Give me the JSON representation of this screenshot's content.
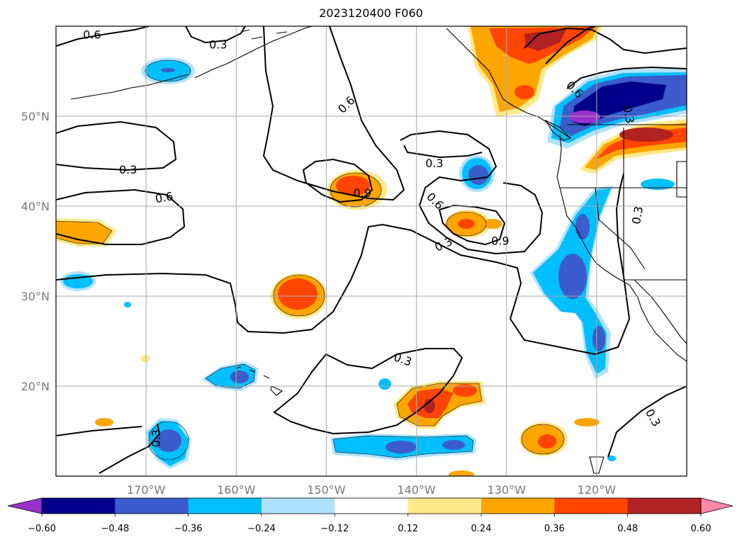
{
  "title": "2023120400 F060",
  "map": {
    "projection": "latlon",
    "extent": {
      "lon_min": -180,
      "lon_max": -110,
      "lat_min": 10,
      "lat_max": 60
    },
    "lon_ticks": [
      {
        "value": -170,
        "label": "170°W"
      },
      {
        "value": -160,
        "label": "160°W"
      },
      {
        "value": -150,
        "label": "150°W"
      },
      {
        "value": -140,
        "label": "140°W"
      },
      {
        "value": -130,
        "label": "130°W"
      },
      {
        "value": -120,
        "label": "120°W"
      }
    ],
    "lat_ticks": [
      {
        "value": 50,
        "label": "50°N"
      },
      {
        "value": 40,
        "label": "40°N"
      },
      {
        "value": 30,
        "label": "30°N"
      },
      {
        "value": 20,
        "label": "20°N"
      }
    ],
    "gridlines": true
  },
  "colorbar": {
    "orientation": "horizontal",
    "extend": "both",
    "levels": [
      -0.6,
      -0.48,
      -0.36,
      -0.24,
      -0.12,
      0.12,
      0.24,
      0.36,
      0.48,
      0.6
    ],
    "tick_labels": [
      "−0.60",
      "−0.48",
      "−0.36",
      "−0.24",
      "−0.12",
      "0.12",
      "0.24",
      "0.36",
      "0.48",
      "0.60"
    ],
    "colors": [
      "#9932cc",
      "#00008b",
      "#3a5ccc",
      "#00bfff",
      "#b0e2ff",
      "#ffffff",
      "#ffe98a",
      "#ffa500",
      "#ff4500",
      "#b22222",
      "#ff88aa"
    ]
  },
  "contour_labels": [
    {
      "text": "0.6",
      "lon": -176.0,
      "lat": 59.1,
      "rot": 0
    },
    {
      "text": "0.3",
      "lon": -162.0,
      "lat": 58.0,
      "rot": 0
    },
    {
      "text": "0.3",
      "lon": -172.0,
      "lat": 44.1,
      "rot": 0
    },
    {
      "text": "0.6",
      "lon": -168.0,
      "lat": 41.0,
      "rot": 10
    },
    {
      "text": "0.6",
      "lon": -147.8,
      "lat": 51.3,
      "rot": 45
    },
    {
      "text": "0.9",
      "lon": -146.0,
      "lat": 41.5,
      "rot": 0
    },
    {
      "text": "0.3",
      "lon": -138.0,
      "lat": 44.8,
      "rot": 0
    },
    {
      "text": "0.6",
      "lon": -137.9,
      "lat": 40.6,
      "rot": -45
    },
    {
      "text": "0.3",
      "lon": -137.0,
      "lat": 35.8,
      "rot": 25
    },
    {
      "text": "0.9",
      "lon": -130.7,
      "lat": 36.2,
      "rot": 0
    },
    {
      "text": "0.3",
      "lon": -141.5,
      "lat": 23.0,
      "rot": -20
    },
    {
      "text": "0.3",
      "lon": -168.9,
      "lat": 14.2,
      "rot": 90
    },
    {
      "text": "0.6",
      "lon": -122.4,
      "lat": 53.0,
      "rot": -45
    },
    {
      "text": "0.3",
      "lon": -116.4,
      "lat": 50.2,
      "rot": -80
    },
    {
      "text": "0.3",
      "lon": -115.5,
      "lat": 39.0,
      "rot": 80
    },
    {
      "text": "0.3",
      "lon": -113.7,
      "lat": 16.5,
      "rot": -60
    }
  ]
}
